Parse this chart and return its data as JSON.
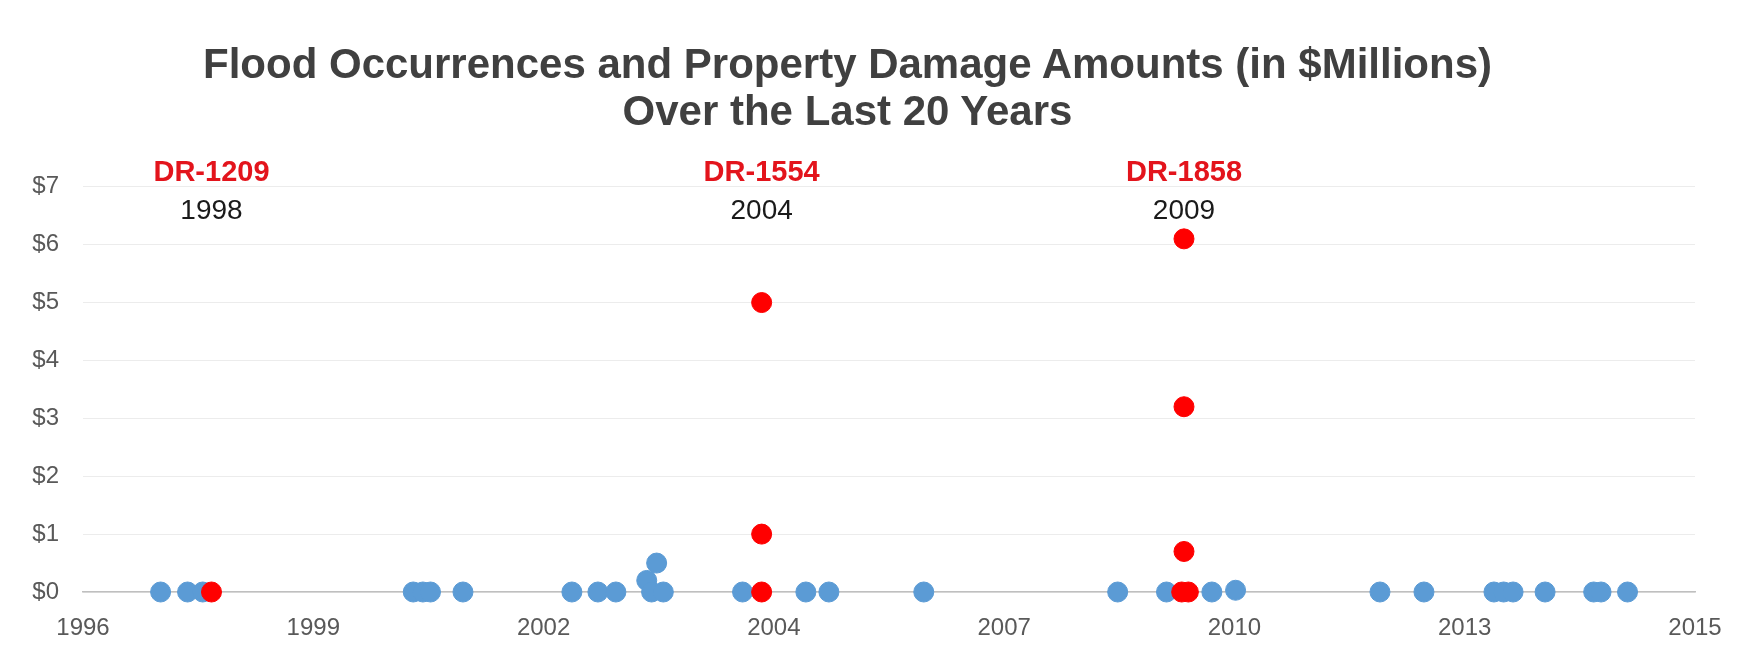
{
  "chart_data": {
    "type": "scatter",
    "title": "Flood Occurrences and Property Damage Amounts (in $Millions)\nOver the Last 20 Years",
    "series": [
      {
        "color": "#5b9bd5",
        "x": [
          "1997-07-26",
          "1997-11-20",
          "1998-01-25",
          "2000-07-27",
          "2000-09-07",
          "2000-10-10",
          "2001-02-28",
          "2002-06-16",
          "2002-10-07",
          "2002-12-24",
          "2003-05-07",
          "2003-05-28",
          "2003-06-19",
          "2003-07-18",
          "2004-06-26",
          "2005-03-28",
          "2005-07-06",
          "2006-08-22",
          "2008-12-11",
          "2009-07-11",
          "2010-01-24",
          "2010-05-07",
          "2012-01-24",
          "2012-08-02",
          "2013-06-02",
          "2013-07-14",
          "2013-08-24",
          "2014-01-10",
          "2014-08-09",
          "2014-09-10",
          "2015-01-03"
        ],
        "values": [
          0,
          0,
          0,
          0,
          0,
          0,
          0,
          0,
          0,
          0,
          0.2,
          0,
          0.5,
          0,
          0,
          0,
          0,
          0,
          0,
          0,
          0,
          0.03,
          0,
          0,
          0,
          0,
          0,
          0,
          0,
          0,
          0
        ]
      },
      {
        "color": "#ff0000",
        "x": [
          "1998-03-04",
          "2004-09-17",
          "2004-09-17",
          "2004-09-17",
          "2009-09-25",
          "2009-09-25",
          "2009-09-25",
          "2009-09-15",
          "2009-10-14"
        ],
        "values": [
          0,
          0,
          1.0,
          5.0,
          6.1,
          3.2,
          0.7,
          0,
          0
        ]
      }
    ],
    "xlim": [
      "1996-08-23",
      "2015-10-23"
    ],
    "xticks": [
      {
        "value": "1996-08-23",
        "label": "1996"
      },
      {
        "value": "1999-05-20",
        "label": "1999"
      },
      {
        "value": "2002-02-13",
        "label": "2002"
      },
      {
        "value": "2004-11-09",
        "label": "2004"
      },
      {
        "value": "2007-08-06",
        "label": "2007"
      },
      {
        "value": "2010-05-02",
        "label": "2010"
      },
      {
        "value": "2013-01-26",
        "label": "2013"
      },
      {
        "value": "2015-10-23",
        "label": "2015"
      }
    ],
    "ylim": [
      0,
      7
    ],
    "yticks": [
      {
        "value": 0,
        "label": "$0"
      },
      {
        "value": 1,
        "label": "$1"
      },
      {
        "value": 2,
        "label": "$2"
      },
      {
        "value": 3,
        "label": "$3"
      },
      {
        "value": 4,
        "label": "$4"
      },
      {
        "value": 5,
        "label": "$5"
      },
      {
        "value": 6,
        "label": "$6"
      },
      {
        "value": 7,
        "label": "$7"
      }
    ],
    "annotations": [
      "DR-1209",
      "1998",
      "DR-1554",
      "2004",
      "DR-1858",
      "2009"
    ],
    "grid": "y",
    "marker": "circle"
  }
}
